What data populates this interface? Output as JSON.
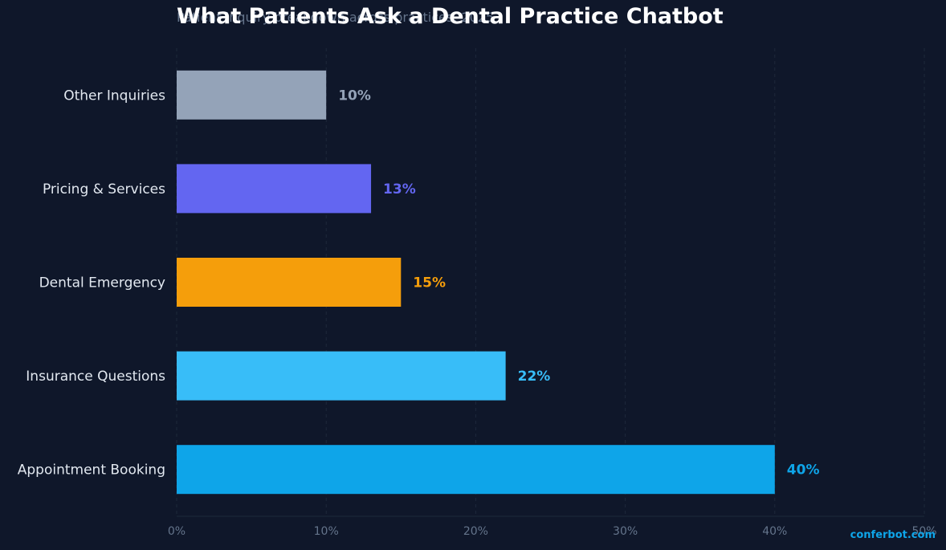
{
  "chart_data": {
    "type": "bar",
    "orientation": "horizontal",
    "title": "What Patients Ask a Dental Practice Chatbot",
    "subtitle": "Patient inquiry breakdown across practices, 2025",
    "categories": [
      "Other Inquiries",
      "Pricing & Services",
      "Dental Emergency",
      "Insurance Questions",
      "Appointment Booking"
    ],
    "values": [
      10,
      13,
      15,
      22,
      40
    ],
    "value_labels": [
      "10%",
      "13%",
      "15%",
      "22%",
      "40%"
    ],
    "colors": [
      "#94a3b8",
      "#6366f1",
      "#f59e0b",
      "#38bdf8",
      "#0ea5e9"
    ],
    "xlim": [
      0,
      50
    ],
    "x_ticks": [
      0,
      10,
      20,
      30,
      40,
      50
    ],
    "x_tick_labels": [
      "0%",
      "10%",
      "20%",
      "30%",
      "40%",
      "50%"
    ],
    "xlabel": "",
    "ylabel": "",
    "grid": "vertical dashed",
    "background": "#0f172a"
  },
  "brand": "conferbot.com"
}
